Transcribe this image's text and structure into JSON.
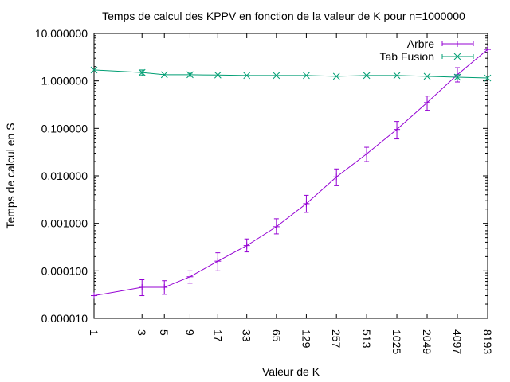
{
  "chart_data": {
    "type": "line",
    "title": "Temps de calcul des KPPV en fonction de la valeur de K pour n=1000000",
    "xlabel": "Valeur de K",
    "ylabel": "Temps de calcul en S",
    "x_scale": "log2",
    "y_scale": "log10",
    "xlim": [
      1,
      8193
    ],
    "ylim": [
      1e-05,
      10
    ],
    "x_ticks": [
      "1",
      "3",
      "5",
      "9",
      "17",
      "33",
      "65",
      "129",
      "257",
      "513",
      "1025",
      "2049",
      "4097",
      "8193"
    ],
    "y_ticks": [
      "10.000000",
      "1.000000",
      "0.100000",
      "0.010000",
      "0.001000",
      "0.000100",
      "0.000010"
    ],
    "legend_position": "top-right",
    "grid": false,
    "series": [
      {
        "name": "Arbre",
        "color": "#9400d3",
        "marker": "plus",
        "x": [
          1,
          3,
          5,
          9,
          17,
          33,
          65,
          129,
          257,
          513,
          1025,
          2049,
          4097,
          8193
        ],
        "y": [
          3e-05,
          4.5e-05,
          4.5e-05,
          7.5e-05,
          0.00016,
          0.00034,
          0.00085,
          0.0026,
          0.0095,
          0.029,
          0.095,
          0.35,
          1.35,
          4.6
        ],
        "err_low": [
          3e-05,
          3e-05,
          3.2e-05,
          5.5e-05,
          0.0001,
          0.00025,
          0.0006,
          0.0017,
          0.0062,
          0.02,
          0.06,
          0.24,
          0.95,
          4.6
        ],
        "err_high": [
          3e-05,
          6.5e-05,
          6.2e-05,
          0.0001,
          0.00024,
          0.00047,
          0.00125,
          0.0039,
          0.014,
          0.04,
          0.14,
          0.48,
          1.9,
          4.6
        ]
      },
      {
        "name": "Tab Fusion",
        "color": "#009e73",
        "marker": "cross",
        "x": [
          1,
          3,
          5,
          9,
          17,
          33,
          65,
          129,
          257,
          513,
          1025,
          2049,
          4097,
          8193
        ],
        "y": [
          1.7,
          1.5,
          1.35,
          1.35,
          1.33,
          1.3,
          1.3,
          1.3,
          1.25,
          1.3,
          1.3,
          1.25,
          1.2,
          1.15
        ],
        "err_low": [
          1.7,
          1.3,
          1.35,
          1.25,
          1.33,
          1.3,
          1.3,
          1.3,
          1.25,
          1.3,
          1.3,
          1.25,
          1.05,
          1.15
        ],
        "err_high": [
          1.7,
          1.7,
          1.35,
          1.45,
          1.33,
          1.3,
          1.3,
          1.3,
          1.25,
          1.3,
          1.3,
          1.25,
          1.35,
          1.15
        ]
      }
    ]
  }
}
